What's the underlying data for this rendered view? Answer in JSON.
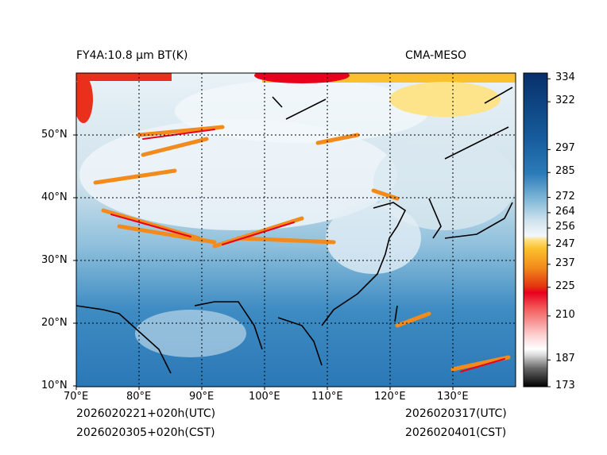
{
  "header": {
    "title": "FY4A:10.8 μm BT(K)",
    "source": "CMA-MESO"
  },
  "map": {
    "lon_range": [
      70,
      140
    ],
    "lat_range": [
      10,
      60
    ],
    "lat_ticks": [
      {
        "value": 50,
        "label": "50°N"
      },
      {
        "value": 40,
        "label": "40°N"
      },
      {
        "value": 30,
        "label": "30°N"
      },
      {
        "value": 20,
        "label": "20°N"
      },
      {
        "value": 10,
        "label": "10°N"
      }
    ],
    "lon_ticks": [
      {
        "value": 70,
        "label": "70°E"
      },
      {
        "value": 80,
        "label": "80°E"
      },
      {
        "value": 90,
        "label": "90°E"
      },
      {
        "value": 100,
        "label": "100°E"
      },
      {
        "value": 110,
        "label": "110°E"
      },
      {
        "value": 120,
        "label": "120°E"
      },
      {
        "value": 130,
        "label": "130°E"
      }
    ]
  },
  "colorbar": {
    "min": 173,
    "max": 337,
    "labels": [
      334,
      322,
      297,
      285,
      272,
      264,
      256,
      247,
      237,
      225,
      210,
      187,
      173
    ],
    "colors": {
      "warm_dark": "#08306b",
      "warm_mid": "#2b7bb9",
      "light": "#dcebf3",
      "yellow": "#fde38a",
      "orange": "#f28b1b",
      "red": "#e8001c",
      "pink": "#fbc0c0",
      "grey": "#9a9a9a",
      "black": "#000000"
    }
  },
  "footer": {
    "init_utc": "2026020221+020h(UTC)",
    "valid_utc": "2026020317(UTC)",
    "init_cst": "2026020305+020h(CST)",
    "valid_cst": "2026020401(CST)"
  }
}
